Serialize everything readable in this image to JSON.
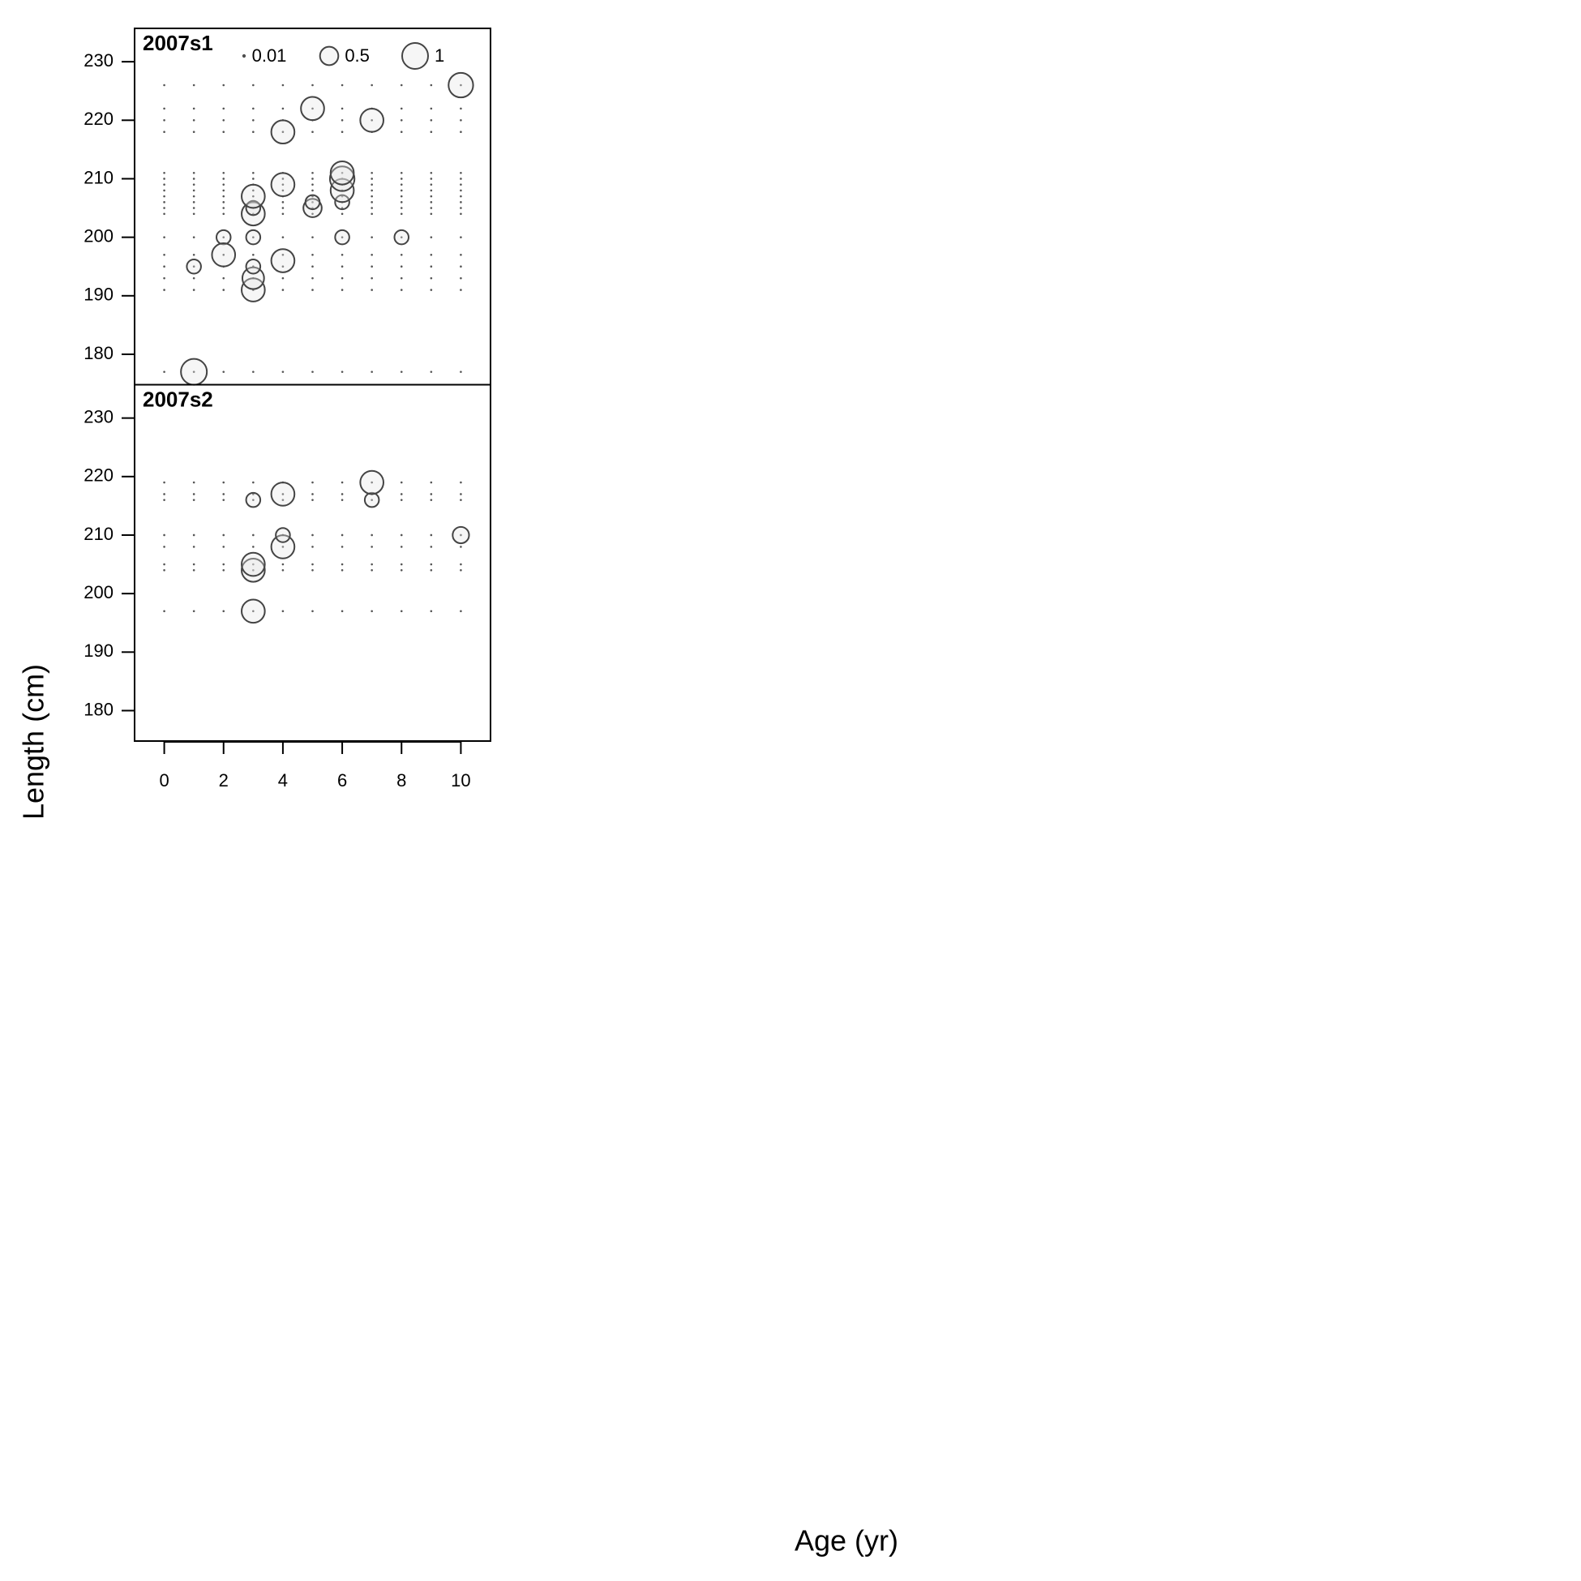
{
  "chart_data": {
    "type": "bubble",
    "xlabel": "Age (yr)",
    "ylabel": "Length (cm)",
    "xlim": [
      -1,
      11
    ],
    "xticks": [
      0,
      2,
      4,
      6,
      8,
      10
    ],
    "ylim": [
      174.8,
      235.7
    ],
    "yticks": [
      180,
      190,
      200,
      210,
      220,
      230
    ],
    "legend": {
      "sizes": [
        0.01,
        0.5,
        1
      ]
    },
    "color": "#444444",
    "panels": [
      {
        "title": "2007s1",
        "dots": {
          "ages": [
            0,
            1,
            2,
            3,
            4,
            5,
            6,
            7,
            8,
            9,
            10
          ],
          "lengths": [
            177,
            191,
            193,
            195,
            197,
            200,
            204,
            205,
            206,
            207,
            208,
            209,
            210,
            211,
            218,
            220,
            222,
            226
          ]
        },
        "x": [
          1,
          1,
          2,
          2,
          3,
          3,
          3,
          3,
          3,
          3,
          3,
          4,
          4,
          4,
          5,
          5,
          5,
          6,
          6,
          6,
          6,
          6,
          7,
          8,
          10
        ],
        "y": [
          177,
          195,
          200,
          197,
          191,
          193,
          195,
          200,
          204,
          205,
          207,
          196,
          209,
          218,
          205,
          206,
          222,
          200,
          206,
          208,
          210,
          211,
          220,
          200,
          226
        ],
        "size": [
          1,
          0.3,
          0.3,
          0.8,
          0.8,
          0.7,
          0.3,
          0.3,
          0.8,
          0.3,
          0.8,
          0.8,
          0.8,
          0.8,
          0.5,
          0.3,
          0.8,
          0.3,
          0.3,
          0.8,
          0.9,
          0.8,
          0.8,
          0.3,
          0.9
        ]
      },
      {
        "title": "2007s2",
        "dots": {
          "ages": [
            0,
            1,
            2,
            3,
            4,
            5,
            6,
            7,
            8,
            9,
            10
          ],
          "lengths": [
            197,
            204,
            205,
            208,
            210,
            216,
            217,
            219
          ]
        },
        "x": [
          3,
          3,
          3,
          3,
          4,
          4,
          4,
          7,
          7,
          10
        ],
        "y": [
          197,
          204,
          205,
          216,
          208,
          210,
          217,
          216,
          219,
          210
        ],
        "size": [
          0.8,
          0.8,
          0.8,
          0.3,
          0.8,
          0.3,
          0.8,
          0.3,
          0.8,
          0.4
        ]
      }
    ]
  }
}
